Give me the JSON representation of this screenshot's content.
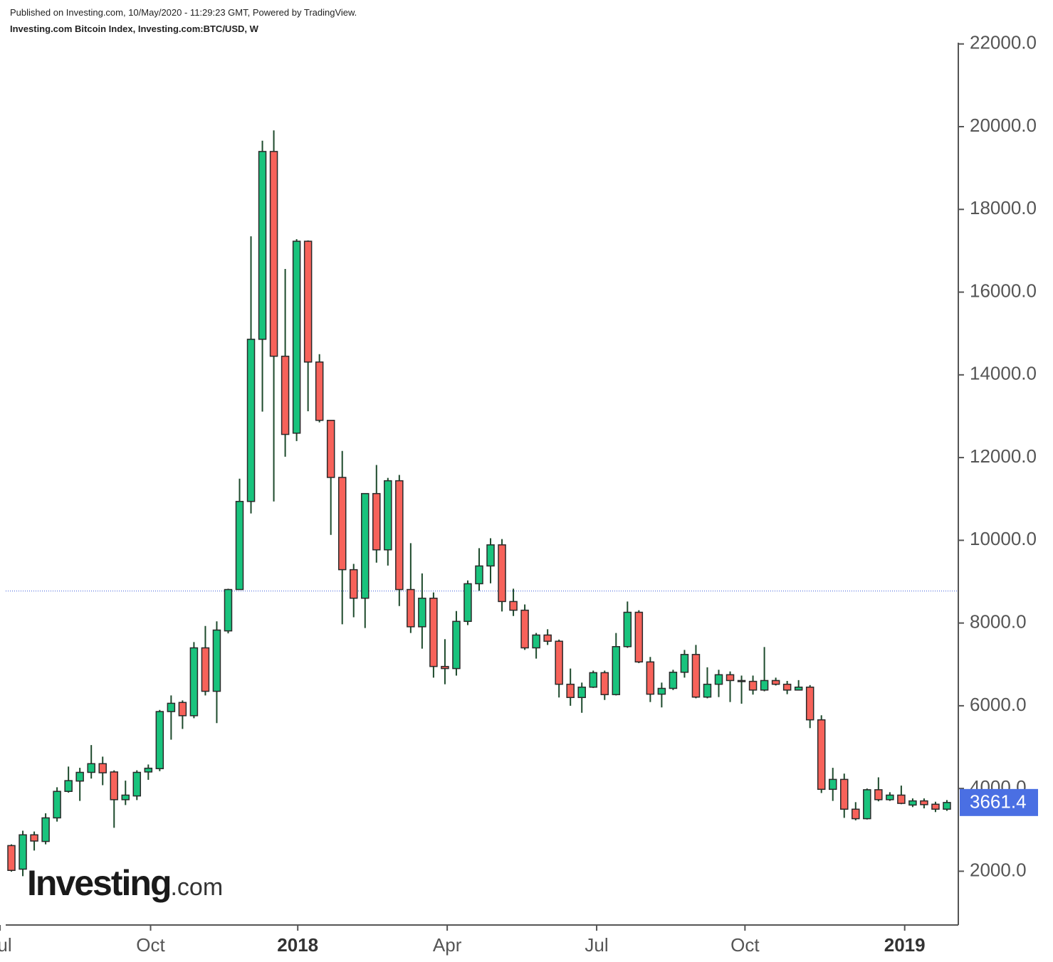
{
  "header": {
    "published": "Published on Investing.com, 10/May/2020 - 11:29:23 GMT, Powered by TradingView.",
    "title": "Investing.com Bitcoin Index, Investing.com:BTC/USD, W"
  },
  "logo": {
    "name": "Investing",
    "suffix": ".com"
  },
  "chart_data": {
    "type": "candlestick",
    "up_color": "#19c37d",
    "down_color": "#f7625a",
    "wick_color": "#1d4a2c",
    "border_color": "#2a2a2a",
    "price_line": 8775,
    "price_line_color": "#3b5bdb",
    "price_label_color": "#4a6fe3",
    "open": [
      2620,
      2050,
      2880,
      2720,
      3290,
      3930,
      4180,
      4390,
      4600,
      4400,
      3730,
      3820,
      4400,
      4480,
      5860,
      6080,
      5760,
      7400,
      6350,
      7810,
      8810,
      10940,
      14860,
      19400,
      14450,
      12590,
      17230,
      14310,
      12900,
      11520,
      9290,
      8600,
      11130,
      9770,
      11440,
      8810,
      7910,
      8600,
      6950,
      6900,
      8040,
      8950,
      9380,
      9890,
      8520,
      8310,
      7400,
      7710,
      7560,
      6520,
      6200,
      6450,
      6800,
      6270,
      7430,
      8260,
      7060,
      6280,
      6420,
      6810,
      7240,
      6210,
      6520,
      6750,
      6610,
      6590,
      6380,
      6610,
      6520,
      6380,
      6450,
      5660,
      3980,
      4220,
      3500,
      3270,
      3970,
      3730,
      3840,
      3600,
      3700,
      3620,
      3500
    ],
    "high": [
      2650,
      2980,
      2960,
      3400,
      4030,
      4530,
      4500,
      5050,
      4770,
      4440,
      4190,
      4440,
      4580,
      5900,
      6250,
      6130,
      7540,
      7930,
      8040,
      8830,
      11490,
      17350,
      19660,
      19910,
      16560,
      17280,
      17250,
      14500,
      12900,
      12160,
      9430,
      11130,
      11820,
      11510,
      11580,
      9930,
      9200,
      8740,
      7610,
      8290,
      9030,
      9810,
      10050,
      10030,
      8830,
      8450,
      7760,
      7850,
      7600,
      6900,
      6560,
      6850,
      6850,
      7760,
      8520,
      8310,
      7180,
      6560,
      6870,
      7350,
      7470,
      6930,
      6870,
      6830,
      6730,
      6730,
      7420,
      6680,
      6600,
      6620,
      6500,
      5770,
      4500,
      4360,
      3670,
      4000,
      4270,
      3910,
      4070,
      3760,
      3760,
      3680,
      3720
    ],
    "low": [
      1990,
      1880,
      2500,
      2650,
      3200,
      3900,
      3700,
      4240,
      4080,
      3050,
      3600,
      3720,
      4210,
      4420,
      5180,
      5440,
      5700,
      6250,
      5580,
      7750,
      8810,
      10650,
      13110,
      10940,
      12020,
      12400,
      13120,
      12850,
      10130,
      7970,
      8140,
      7880,
      9460,
      9390,
      8410,
      7760,
      7380,
      6680,
      6520,
      6730,
      7950,
      8780,
      8960,
      8280,
      8170,
      7350,
      7140,
      7470,
      6200,
      6000,
      5830,
      6430,
      6140,
      6250,
      7400,
      7030,
      6090,
      5960,
      6380,
      6680,
      6180,
      6180,
      6210,
      6090,
      6050,
      6270,
      6350,
      6490,
      6280,
      6380,
      5460,
      3890,
      3700,
      3290,
      3230,
      3250,
      3690,
      3700,
      3620,
      3550,
      3520,
      3430,
      3460
    ],
    "close": [
      2020,
      2880,
      2730,
      3290,
      3930,
      4190,
      4390,
      4600,
      4380,
      3730,
      3840,
      4390,
      4490,
      5860,
      6060,
      5760,
      7400,
      6350,
      7830,
      8810,
      10940,
      14860,
      19400,
      14450,
      12560,
      17230,
      14310,
      12900,
      11520,
      9290,
      8600,
      11130,
      9770,
      11440,
      8810,
      7910,
      8600,
      6950,
      6900,
      8040,
      8950,
      9380,
      9890,
      8520,
      8310,
      7400,
      7710,
      7560,
      6520,
      6200,
      6450,
      6800,
      6270,
      7430,
      8260,
      7060,
      6280,
      6420,
      6810,
      7240,
      6210,
      6520,
      6750,
      6610,
      6590,
      6380,
      6610,
      6520,
      6380,
      6450,
      5660,
      3980,
      4220,
      3500,
      3270,
      3970,
      3730,
      3840,
      3640,
      3700,
      3610,
      3500,
      3661.4
    ],
    "xlim": [
      -1,
      83
    ],
    "xticks": [
      {
        "value": -1,
        "label": "Jul"
      },
      {
        "value": 12.2,
        "label": "Oct"
      },
      {
        "value": 25.1,
        "label": "2018"
      },
      {
        "value": 38.2,
        "label": "Apr"
      },
      {
        "value": 51.3,
        "label": "Jul"
      },
      {
        "value": 64.3,
        "label": "Oct"
      },
      {
        "value": 78.3,
        "label": "2019"
      }
    ],
    "ylim": [
      700,
      22030
    ],
    "yticks": [
      {
        "value": 2000,
        "label": "2000.0"
      },
      {
        "value": 4000,
        "label": "4000.0"
      },
      {
        "value": 6000,
        "label": "6000.0"
      },
      {
        "value": 8000,
        "label": "8000.0"
      },
      {
        "value": 10000,
        "label": "10000.0"
      },
      {
        "value": 12000,
        "label": "12000.0"
      },
      {
        "value": 14000,
        "label": "14000.0"
      },
      {
        "value": 16000,
        "label": "16000.0"
      },
      {
        "value": 18000,
        "label": "18000.0"
      },
      {
        "value": 20000,
        "label": "20000.0"
      },
      {
        "value": 22000,
        "label": "22000.0"
      }
    ]
  }
}
